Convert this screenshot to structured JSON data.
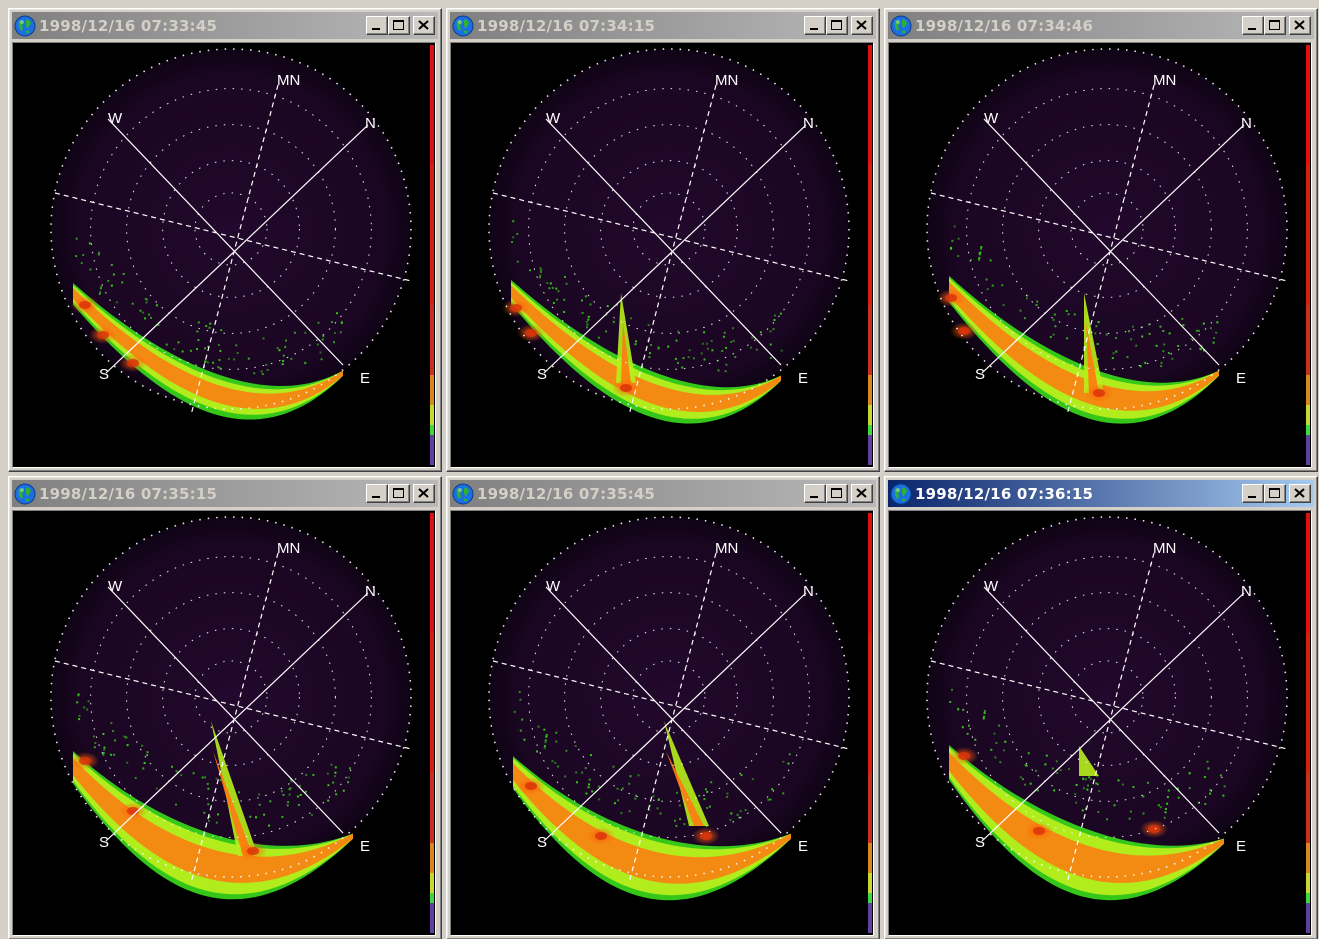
{
  "colors": {
    "sky_background": "#1a0622",
    "aurora_low": "#37d21a",
    "aurora_mid": "#b8ee1c",
    "aurora_high": "#ff7a10",
    "aurora_peak": "#d8320a",
    "active_title": "#0a246a",
    "inactive_title": "#808080"
  },
  "compass": {
    "north": "N",
    "south": "S",
    "east": "E",
    "west": "W",
    "magnetic_north": "MN"
  },
  "windows": [
    {
      "title": "1998/12/16 07:33:45",
      "active": false,
      "icon": "globe-icon"
    },
    {
      "title": "1998/12/16 07:34:15",
      "active": false,
      "icon": "globe-icon"
    },
    {
      "title": "1998/12/16 07:34:46",
      "active": false,
      "icon": "globe-icon"
    },
    {
      "title": "1998/12/16 07:35:15",
      "active": false,
      "icon": "globe-icon"
    },
    {
      "title": "1998/12/16 07:35:45",
      "active": false,
      "icon": "globe-icon"
    },
    {
      "title": "1998/12/16 07:36:15",
      "active": true,
      "icon": "globe-icon"
    }
  ],
  "controls": {
    "minimize_icon": "minimize-icon",
    "maximize_icon": "maximize-icon",
    "close_icon": "close-icon"
  }
}
